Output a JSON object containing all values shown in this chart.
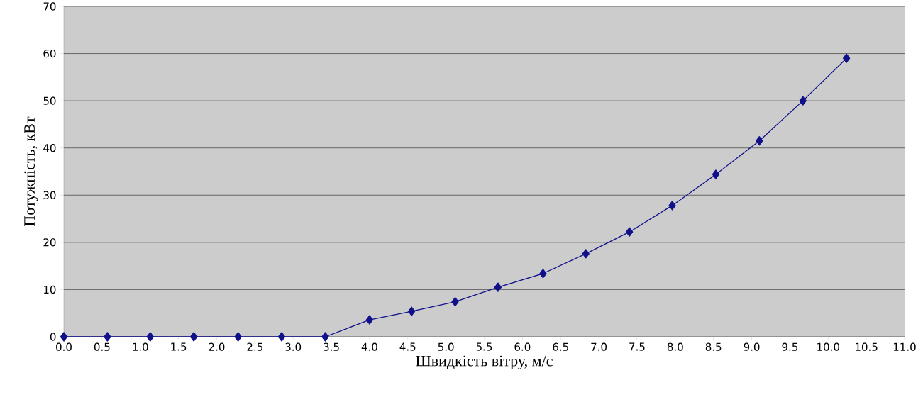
{
  "chart_data": {
    "type": "line",
    "xlabel": "Швидкість вітру, м/с",
    "ylabel": "Потужність, кВт",
    "x": [
      0,
      0.57,
      1.13,
      1.7,
      2.28,
      2.85,
      3.42,
      4.0,
      4.55,
      5.12,
      5.68,
      6.27,
      6.83,
      7.4,
      7.96,
      8.53,
      9.1,
      9.67,
      10.24
    ],
    "series": [
      {
        "color": "#10108a",
        "values": [
          0,
          0,
          0,
          0,
          0,
          0,
          0,
          3.6,
          5.4,
          7.4,
          10.5,
          13.4,
          17.6,
          22.2,
          27.8,
          34.4,
          41.5,
          50,
          59
        ]
      }
    ],
    "xlim": [
      0,
      11
    ],
    "ylim": [
      0,
      70
    ],
    "xticks": [
      {
        "value": 0,
        "label": "0.0"
      },
      {
        "value": 0.5,
        "label": "0.5"
      },
      {
        "value": 1,
        "label": "1.0"
      },
      {
        "value": 1.5,
        "label": "1.5"
      },
      {
        "value": 2,
        "label": "2.0"
      },
      {
        "value": 2.5,
        "label": "2.5"
      },
      {
        "value": 3,
        "label": "3.0"
      },
      {
        "value": 3.5,
        "label": "3.5"
      },
      {
        "value": 4,
        "label": "4.0"
      },
      {
        "value": 4.5,
        "label": "4.5"
      },
      {
        "value": 5,
        "label": "5.0"
      },
      {
        "value": 5.5,
        "label": "5.5"
      },
      {
        "value": 6,
        "label": "6.0"
      },
      {
        "value": 6.5,
        "label": "6.5"
      },
      {
        "value": 7,
        "label": "7.0"
      },
      {
        "value": 7.5,
        "label": "7.5"
      },
      {
        "value": 8,
        "label": "8.0"
      },
      {
        "value": 8.5,
        "label": "8.5"
      },
      {
        "value": 9,
        "label": "9.0"
      },
      {
        "value": 9.5,
        "label": "9.5"
      },
      {
        "value": 10,
        "label": "10.0"
      },
      {
        "value": 10.5,
        "label": "10.5"
      },
      {
        "value": 11,
        "label": "11.0"
      }
    ],
    "yticks": [
      0,
      10,
      20,
      30,
      40,
      50,
      60,
      70
    ],
    "grid": "y",
    "marker": "diamond",
    "line_style": "solid"
  }
}
